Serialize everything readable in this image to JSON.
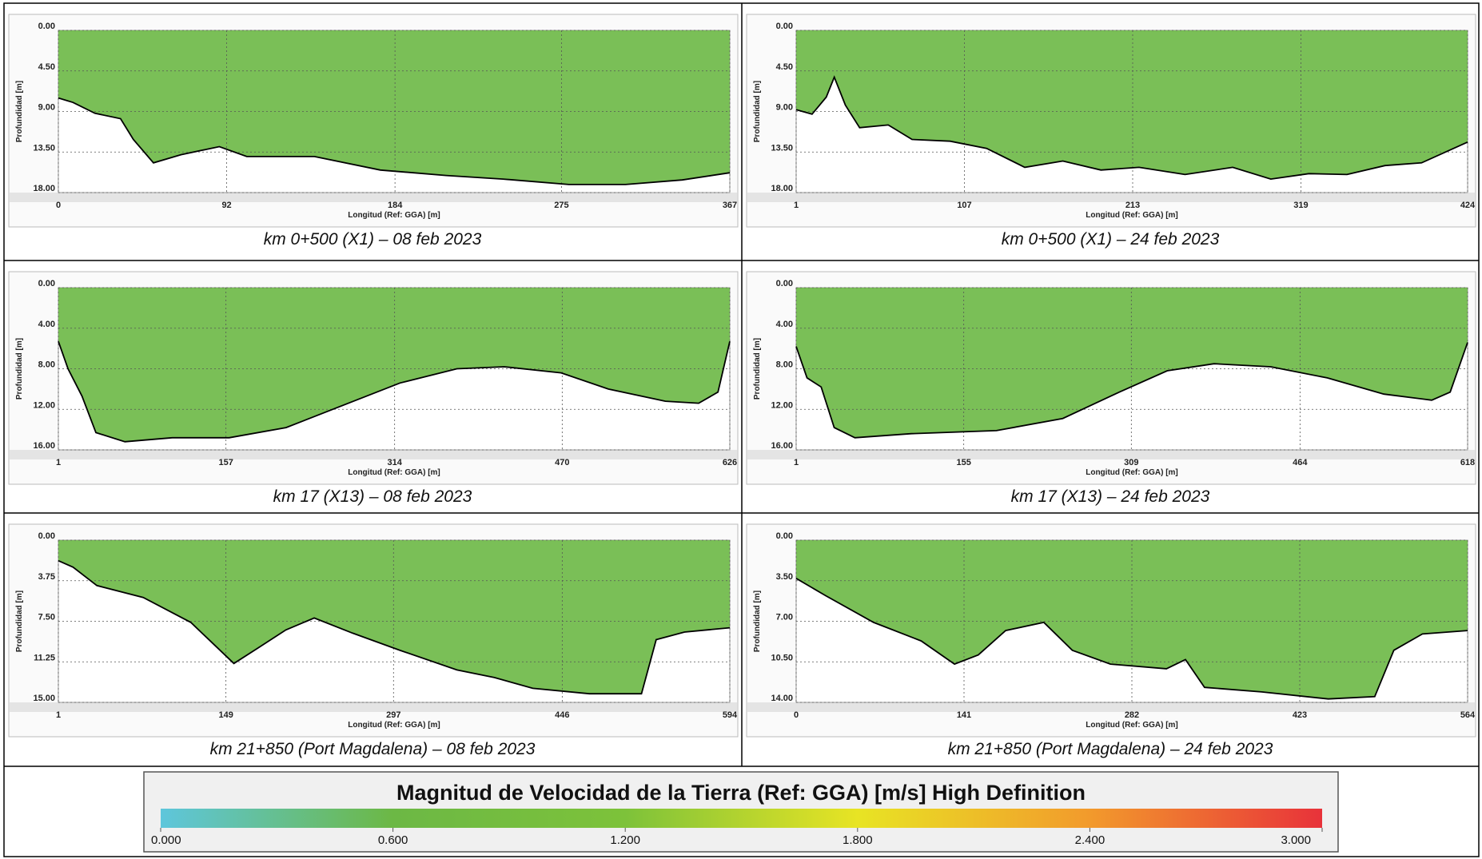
{
  "chart_data": [
    {
      "type": "line",
      "caption": "km 0+500 (X1) – 08 feb 2023",
      "ylabel": "Profundidad [m]",
      "xlabel": "Longitud (Ref: GGA) [m]",
      "x": [
        0,
        8,
        20,
        34,
        41,
        52,
        67,
        88,
        103,
        140,
        176,
        212,
        243,
        279,
        310,
        341,
        367
      ],
      "series": [
        {
          "color": "#000000",
          "values": [
            7.5,
            8.0,
            9.2,
            9.8,
            12.1,
            14.7,
            13.8,
            12.9,
            14.0,
            14.0,
            15.5,
            16.1,
            16.5,
            17.1,
            17.1,
            16.6,
            15.8
          ]
        }
      ],
      "xlim": [
        0,
        367
      ],
      "xticks": [
        0,
        92,
        184,
        275,
        367
      ],
      "ylim": [
        0,
        18
      ],
      "yticks": [
        {
          "value": 0,
          "label": "0.00"
        },
        {
          "value": 4.5,
          "label": "4.50"
        },
        {
          "value": 9,
          "label": "9.00"
        },
        {
          "value": 13.5,
          "label": "13.50"
        },
        {
          "value": 18,
          "label": "18.00"
        }
      ],
      "y_inverted": true,
      "grid": true,
      "field_color": "#6cb845"
    },
    {
      "type": "line",
      "caption": "km 0+500 (X1) – 24 feb 2023",
      "ylabel": "Profundidad [m]",
      "xlabel": "Longitud (Ref: GGA) [m]",
      "x": [
        1,
        11,
        20,
        25,
        32,
        41,
        59,
        74,
        98,
        121,
        145,
        169,
        193,
        217,
        246,
        276,
        300,
        324,
        348,
        372,
        395,
        424
      ],
      "series": [
        {
          "color": "#000000",
          "values": [
            8.8,
            9.3,
            7.4,
            5.2,
            8.3,
            10.8,
            10.5,
            12.1,
            12.3,
            13.1,
            15.2,
            14.5,
            15.5,
            15.2,
            16.0,
            15.2,
            16.5,
            15.9,
            16.0,
            15.0,
            14.7,
            12.4
          ]
        }
      ],
      "xlim": [
        1,
        424
      ],
      "xticks": [
        1,
        107,
        213,
        319,
        424
      ],
      "ylim": [
        0,
        18
      ],
      "yticks": [
        {
          "value": 0,
          "label": "0.00"
        },
        {
          "value": 4.5,
          "label": "4.50"
        },
        {
          "value": 9,
          "label": "9.00"
        },
        {
          "value": 13.5,
          "label": "13.50"
        },
        {
          "value": 18,
          "label": "18.00"
        }
      ],
      "y_inverted": true,
      "grid": true,
      "field_color": "#6cb845"
    },
    {
      "type": "line",
      "caption": "km 17 (X13) – 08 feb 2023",
      "ylabel": "Profundidad [m]",
      "xlabel": "Longitud (Ref: GGA) [m]",
      "x": [
        1,
        10,
        23,
        36,
        63,
        107,
        160,
        213,
        266,
        319,
        372,
        416,
        469,
        513,
        566,
        597,
        615,
        626
      ],
      "series": [
        {
          "color": "#000000",
          "values": [
            5.3,
            8.0,
            10.7,
            14.3,
            15.2,
            14.8,
            14.8,
            13.8,
            11.6,
            9.4,
            8.0,
            7.8,
            8.4,
            10.0,
            11.2,
            11.4,
            10.3,
            5.3
          ]
        }
      ],
      "xlim": [
        1,
        626
      ],
      "xticks": [
        1,
        157,
        314,
        470,
        626
      ],
      "ylim": [
        0,
        16
      ],
      "yticks": [
        {
          "value": 0,
          "label": "0.00"
        },
        {
          "value": 4,
          "label": "4.00"
        },
        {
          "value": 8,
          "label": "8.00"
        },
        {
          "value": 12,
          "label": "12.00"
        },
        {
          "value": 16,
          "label": "16.00"
        }
      ],
      "y_inverted": true,
      "grid": true,
      "field_color": "#6cb845"
    },
    {
      "type": "line",
      "caption": "km 17 (X13) – 24 feb 2023",
      "ylabel": "Profundidad [m]",
      "xlabel": "Longitud (Ref: GGA) [m]",
      "x": [
        1,
        11,
        24,
        36,
        55,
        107,
        185,
        246,
        298,
        342,
        385,
        437,
        489,
        541,
        585,
        602,
        618
      ],
      "series": [
        {
          "color": "#000000",
          "values": [
            5.8,
            8.9,
            9.8,
            13.8,
            14.8,
            14.4,
            14.1,
            12.9,
            10.3,
            8.2,
            7.5,
            7.8,
            8.9,
            10.5,
            11.1,
            10.3,
            5.4
          ]
        }
      ],
      "xlim": [
        1,
        618
      ],
      "xticks": [
        1,
        155,
        309,
        464,
        618
      ],
      "ylim": [
        0,
        16
      ],
      "yticks": [
        {
          "value": 0,
          "label": "0.00"
        },
        {
          "value": 4,
          "label": "4.00"
        },
        {
          "value": 8,
          "label": "8.00"
        },
        {
          "value": 12,
          "label": "12.00"
        },
        {
          "value": 16,
          "label": "16.00"
        }
      ],
      "y_inverted": true,
      "grid": true,
      "field_color": "#6cb845"
    },
    {
      "type": "line",
      "caption": "km 21+850 (Port Magdalena) – 08 feb 2023",
      "ylabel": "Profundidad [m]",
      "xlabel": "Longitud (Ref: GGA) [m]",
      "x": [
        1,
        14,
        35,
        76,
        118,
        156,
        177,
        202,
        227,
        261,
        303,
        353,
        386,
        420,
        470,
        516,
        529,
        554,
        594
      ],
      "series": [
        {
          "color": "#000000",
          "values": [
            1.9,
            2.5,
            4.2,
            5.3,
            7.6,
            11.4,
            10.0,
            8.3,
            7.2,
            8.6,
            10.2,
            12.0,
            12.7,
            13.7,
            14.2,
            14.2,
            9.2,
            8.5,
            8.1
          ]
        }
      ],
      "xlim": [
        1,
        594
      ],
      "xticks": [
        1,
        149,
        297,
        446,
        594
      ],
      "ylim": [
        0,
        15
      ],
      "yticks": [
        {
          "value": 0,
          "label": "0.00"
        },
        {
          "value": 3.75,
          "label": "3.75"
        },
        {
          "value": 7.5,
          "label": "7.50"
        },
        {
          "value": 11.25,
          "label": "11.25"
        },
        {
          "value": 15,
          "label": "15.00"
        }
      ],
      "y_inverted": true,
      "grid": true,
      "field_color": "#6cb845"
    },
    {
      "type": "line",
      "caption": "km 21+850 (Port Magdalena) – 24 feb 2023",
      "ylabel": "Profundidad [m]",
      "xlabel": "Longitud (Ref: GGA) [m]",
      "x": [
        0,
        25,
        65,
        105,
        133,
        153,
        176,
        208,
        232,
        264,
        311,
        327,
        343,
        391,
        447,
        486,
        502,
        526,
        564
      ],
      "series": [
        {
          "color": "#000000",
          "values": [
            3.3,
            4.8,
            7.1,
            8.7,
            10.7,
            9.9,
            7.8,
            7.1,
            9.5,
            10.7,
            11.1,
            10.3,
            12.7,
            13.1,
            13.7,
            13.5,
            9.5,
            8.1,
            7.8
          ]
        }
      ],
      "xlim": [
        0,
        564
      ],
      "xticks": [
        0,
        141,
        282,
        423,
        564
      ],
      "ylim": [
        0,
        14
      ],
      "yticks": [
        {
          "value": 0,
          "label": "0.00"
        },
        {
          "value": 3.5,
          "label": "3.50"
        },
        {
          "value": 7,
          "label": "7.00"
        },
        {
          "value": 10.5,
          "label": "10.50"
        },
        {
          "value": 14,
          "label": "14.00"
        }
      ],
      "y_inverted": true,
      "grid": true,
      "field_color": "#6cb845"
    },
    {
      "type": "colorbar",
      "title": "Magnitud de Velocidad de la Tierra (Ref: GGA) [m/s] High Definition",
      "colors": [
        "#5ec6dc",
        "#6cb845",
        "#7dc23a",
        "#e8e424",
        "#f29a2c",
        "#e8323a"
      ],
      "xlim": [
        0,
        3
      ],
      "xticks": [
        {
          "value": 0,
          "label": "0.000"
        },
        {
          "value": 0.6,
          "label": "0.600"
        },
        {
          "value": 1.2,
          "label": "1.200"
        },
        {
          "value": 1.8,
          "label": "1.800"
        },
        {
          "value": 2.4,
          "label": "2.400"
        },
        {
          "value": 3,
          "label": "3.000"
        }
      ]
    }
  ]
}
